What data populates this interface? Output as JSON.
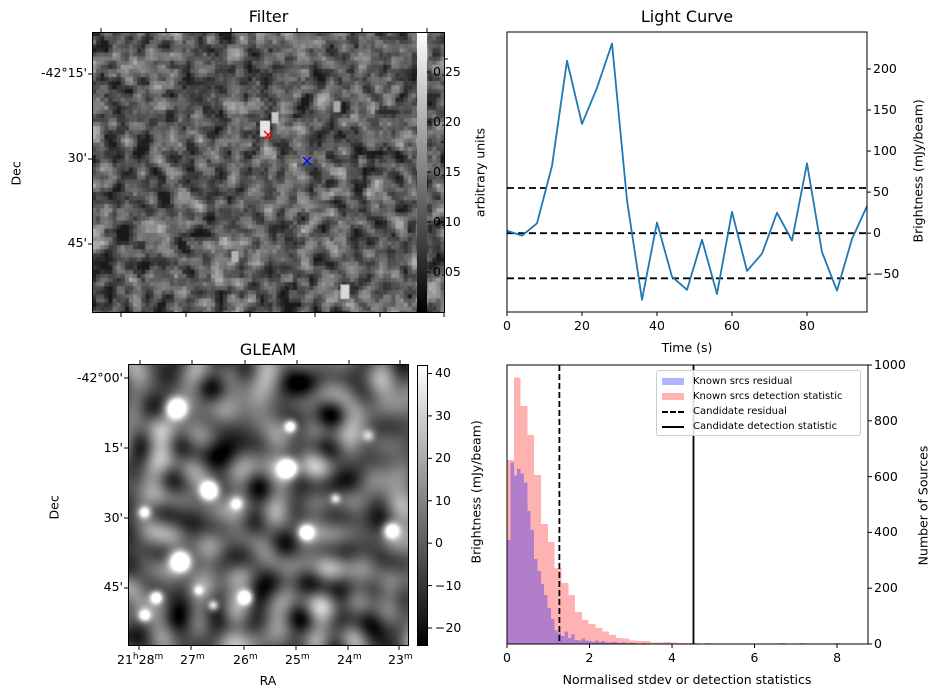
{
  "figure": {
    "panels": {
      "filter": {
        "title": "Filter",
        "ylabel": "Dec",
        "yticks": [
          "-42°15'",
          "30'",
          "45'"
        ],
        "colorbar": {
          "label": "arbitrary units",
          "ticks": [
            "0.05",
            "0.10",
            "0.15",
            "0.20",
            "0.25"
          ],
          "range": [
            0.01,
            0.29
          ],
          "cmap": "gray"
        },
        "markers": [
          {
            "name": "candidate",
            "symbol": "x",
            "color": "#ff0000"
          },
          {
            "name": "reference",
            "symbol": "x",
            "color": "#0000ff"
          }
        ]
      },
      "gleam": {
        "title": "GLEAM",
        "ylabel": "Dec",
        "xlabel": "RA",
        "yticks": [
          "-42°00'",
          "15'",
          "30'",
          "45'"
        ],
        "xticks": [
          {
            "h": "21",
            "hu": "h",
            "m": "28",
            "mu": "m"
          },
          {
            "h": "",
            "hu": "",
            "m": "27",
            "mu": "m"
          },
          {
            "h": "",
            "hu": "",
            "m": "26",
            "mu": "m"
          },
          {
            "h": "",
            "hu": "",
            "m": "25",
            "mu": "m"
          },
          {
            "h": "",
            "hu": "",
            "m": "24",
            "mu": "m"
          },
          {
            "h": "",
            "hu": "",
            "m": "23",
            "mu": "m"
          }
        ],
        "colorbar": {
          "label": "Brightness (mJy/beam)",
          "ticks": [
            "40",
            "30",
            "20",
            "10",
            "0",
            "−10",
            "−20"
          ],
          "range": [
            -24,
            42
          ],
          "cmap": "gray"
        },
        "markers": [
          {
            "name": "candidate",
            "symbol": "x",
            "color": "#ff0000"
          },
          {
            "name": "reference",
            "symbol": "x",
            "color": "#0000ff"
          }
        ]
      }
    }
  },
  "chart_data": [
    {
      "type": "line",
      "title": "Light Curve",
      "xlabel": "Time (s)",
      "ylabel": "Brightness (mJy/beam)",
      "ylabel_side": "right",
      "xlim": [
        0,
        96
      ],
      "ylim": [
        -96,
        245
      ],
      "xticks": [
        0,
        20,
        40,
        60,
        80
      ],
      "yticks": [
        -50,
        0,
        50,
        100,
        150,
        200
      ],
      "ytick_labels": [
        "−50",
        "0",
        "50",
        "100",
        "150",
        "200"
      ],
      "grid": false,
      "series": [
        {
          "name": "light curve",
          "color": "#1f77b4",
          "x": [
            0,
            4,
            8,
            12,
            16,
            20,
            24,
            28,
            32,
            36,
            40,
            44,
            48,
            52,
            56,
            60,
            64,
            68,
            72,
            76,
            80,
            84,
            88,
            92,
            96
          ],
          "y": [
            3,
            -3,
            12,
            82,
            210,
            133,
            177,
            231,
            40,
            -81,
            13,
            -53,
            -69,
            -8,
            -74,
            26,
            -46,
            -25,
            25,
            -9,
            85,
            -23,
            -70,
            -7,
            33
          ]
        }
      ],
      "hlines": [
        {
          "y": 55,
          "style": "dashed",
          "color": "#000000"
        },
        {
          "y": 0,
          "style": "dashed",
          "color": "#000000"
        },
        {
          "y": -55,
          "style": "dashed",
          "color": "#000000"
        }
      ]
    },
    {
      "type": "bar",
      "subtype": "histogram",
      "xlabel": "Normalised stdev or detection statistics",
      "ylabel": "Number of Sources",
      "ylabel_side": "right",
      "xlim": [
        0,
        8.75
      ],
      "ylim": [
        0,
        1000
      ],
      "xticks": [
        0,
        2,
        4,
        6,
        8
      ],
      "yticks": [
        0,
        200,
        400,
        600,
        800,
        1000
      ],
      "grid": false,
      "legend_position": "upper-right",
      "series": [
        {
          "name": "Known srcs residual",
          "color": "#0000ff",
          "alpha": 0.3,
          "bin_start": 0.0,
          "bin_width": 0.082,
          "counts": [
            373,
            650,
            604,
            628,
            611,
            578,
            477,
            409,
            305,
            262,
            215,
            176,
            129,
            90,
            48,
            41,
            28,
            45,
            22,
            35,
            14,
            12,
            20,
            12,
            10,
            8,
            12,
            7,
            10,
            6,
            5,
            8,
            5,
            4,
            5,
            3,
            3,
            4,
            2,
            2,
            3,
            2,
            1,
            2,
            1,
            1,
            1,
            1,
            1,
            0,
            1,
            0,
            1,
            0,
            0,
            0,
            0,
            0,
            0,
            0
          ]
        },
        {
          "name": "Known srcs detection statistic",
          "color": "#ff0000",
          "alpha": 0.3,
          "bin_start": 0.0,
          "bin_width": 0.165,
          "counts": [
            660,
            955,
            853,
            750,
            606,
            430,
            366,
            273,
            219,
            176,
            115,
            86,
            72,
            57,
            45,
            32,
            22,
            19,
            13,
            10,
            10,
            6,
            6,
            8,
            5,
            4,
            4,
            3,
            1,
            4,
            1,
            2,
            1,
            1,
            0,
            0,
            0,
            0,
            0,
            0,
            3,
            0,
            0,
            3,
            0,
            0,
            0,
            0,
            3,
            0,
            0,
            0,
            0,
            2
          ]
        },
        {
          "name": "Candidate residual",
          "type": "vline",
          "x": 1.27,
          "style": "dashed",
          "color": "#000000"
        },
        {
          "name": "Candidate detection statistic",
          "type": "vline",
          "x": 4.52,
          "style": "solid",
          "color": "#000000"
        }
      ]
    }
  ]
}
